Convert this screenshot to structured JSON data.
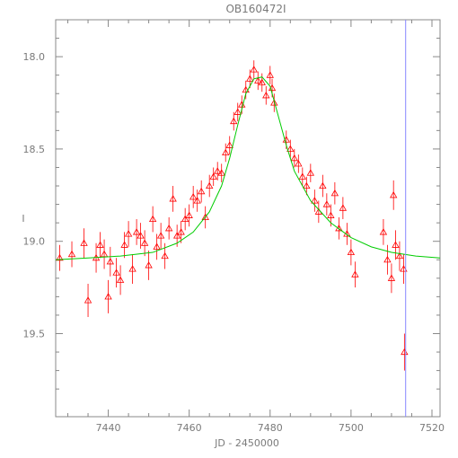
{
  "chart_data": {
    "type": "scatter",
    "title": "OB160472I",
    "xlabel": "JD - 2450000",
    "ylabel": "I",
    "xlim": [
      7427,
      7522
    ],
    "ylim": [
      19.95,
      17.8
    ],
    "y_inverted": true,
    "grid": false,
    "xticks": [
      7440,
      7460,
      7480,
      7500,
      7520
    ],
    "yticks": [
      18.0,
      18.5,
      19.0,
      19.5
    ],
    "xtick_labels": [
      "7440",
      "7460",
      "7480",
      "7500",
      "7520"
    ],
    "ytick_labels": [
      "18.0",
      "18.5",
      "19.0",
      "19.5"
    ],
    "vline_x": 7513.5,
    "series": [
      {
        "kind": "observations",
        "marker": "open-triangle",
        "color": "#ff0000",
        "points": [
          {
            "x": 7428,
            "y": 19.09,
            "err": 0.07
          },
          {
            "x": 7431,
            "y": 19.07,
            "err": 0.07
          },
          {
            "x": 7434,
            "y": 19.01,
            "err": 0.08
          },
          {
            "x": 7435,
            "y": 19.32,
            "err": 0.09
          },
          {
            "x": 7437,
            "y": 19.09,
            "err": 0.08
          },
          {
            "x": 7438,
            "y": 19.02,
            "err": 0.07
          },
          {
            "x": 7439,
            "y": 19.07,
            "err": 0.08
          },
          {
            "x": 7440,
            "y": 19.3,
            "err": 0.09
          },
          {
            "x": 7440.5,
            "y": 19.11,
            "err": 0.08
          },
          {
            "x": 7442,
            "y": 19.17,
            "err": 0.08
          },
          {
            "x": 7443,
            "y": 19.21,
            "err": 0.08
          },
          {
            "x": 7444,
            "y": 19.02,
            "err": 0.07
          },
          {
            "x": 7445,
            "y": 18.96,
            "err": 0.07
          },
          {
            "x": 7446,
            "y": 19.15,
            "err": 0.08
          },
          {
            "x": 7447,
            "y": 18.95,
            "err": 0.07
          },
          {
            "x": 7448,
            "y": 18.97,
            "err": 0.07
          },
          {
            "x": 7449,
            "y": 19.01,
            "err": 0.07
          },
          {
            "x": 7450,
            "y": 19.13,
            "err": 0.08
          },
          {
            "x": 7451,
            "y": 18.88,
            "err": 0.07
          },
          {
            "x": 7452,
            "y": 19.03,
            "err": 0.07
          },
          {
            "x": 7453,
            "y": 18.97,
            "err": 0.07
          },
          {
            "x": 7454,
            "y": 19.08,
            "err": 0.07
          },
          {
            "x": 7455,
            "y": 18.93,
            "err": 0.06
          },
          {
            "x": 7456,
            "y": 18.77,
            "err": 0.07
          },
          {
            "x": 7457,
            "y": 18.97,
            "err": 0.06
          },
          {
            "x": 7458,
            "y": 18.95,
            "err": 0.06
          },
          {
            "x": 7459,
            "y": 18.88,
            "err": 0.06
          },
          {
            "x": 7460,
            "y": 18.86,
            "err": 0.06
          },
          {
            "x": 7461,
            "y": 18.76,
            "err": 0.06
          },
          {
            "x": 7462,
            "y": 18.78,
            "err": 0.06
          },
          {
            "x": 7463,
            "y": 18.73,
            "err": 0.06
          },
          {
            "x": 7464,
            "y": 18.87,
            "err": 0.06
          },
          {
            "x": 7465,
            "y": 18.7,
            "err": 0.06
          },
          {
            "x": 7466,
            "y": 18.65,
            "err": 0.05
          },
          {
            "x": 7467,
            "y": 18.62,
            "err": 0.05
          },
          {
            "x": 7468,
            "y": 18.63,
            "err": 0.05
          },
          {
            "x": 7469,
            "y": 18.52,
            "err": 0.05
          },
          {
            "x": 7470,
            "y": 18.48,
            "err": 0.05
          },
          {
            "x": 7471,
            "y": 18.35,
            "err": 0.05
          },
          {
            "x": 7472,
            "y": 18.3,
            "err": 0.05
          },
          {
            "x": 7473,
            "y": 18.26,
            "err": 0.05
          },
          {
            "x": 7474,
            "y": 18.18,
            "err": 0.05
          },
          {
            "x": 7475,
            "y": 18.12,
            "err": 0.05
          },
          {
            "x": 7476,
            "y": 18.07,
            "err": 0.05
          },
          {
            "x": 7477,
            "y": 18.13,
            "err": 0.05
          },
          {
            "x": 7478,
            "y": 18.14,
            "err": 0.05
          },
          {
            "x": 7479,
            "y": 18.21,
            "err": 0.05
          },
          {
            "x": 7480,
            "y": 18.1,
            "err": 0.05
          },
          {
            "x": 7480.5,
            "y": 18.17,
            "err": 0.05
          },
          {
            "x": 7481,
            "y": 18.25,
            "err": 0.05
          },
          {
            "x": 7484,
            "y": 18.45,
            "err": 0.05
          },
          {
            "x": 7485,
            "y": 18.5,
            "err": 0.05
          },
          {
            "x": 7486,
            "y": 18.55,
            "err": 0.05
          },
          {
            "x": 7487,
            "y": 18.58,
            "err": 0.05
          },
          {
            "x": 7488,
            "y": 18.65,
            "err": 0.05
          },
          {
            "x": 7489,
            "y": 18.7,
            "err": 0.05
          },
          {
            "x": 7490,
            "y": 18.63,
            "err": 0.05
          },
          {
            "x": 7491,
            "y": 18.78,
            "err": 0.06
          },
          {
            "x": 7492,
            "y": 18.84,
            "err": 0.06
          },
          {
            "x": 7493,
            "y": 18.7,
            "err": 0.06
          },
          {
            "x": 7494,
            "y": 18.8,
            "err": 0.06
          },
          {
            "x": 7495,
            "y": 18.86,
            "err": 0.06
          },
          {
            "x": 7496,
            "y": 18.74,
            "err": 0.06
          },
          {
            "x": 7497,
            "y": 18.93,
            "err": 0.06
          },
          {
            "x": 7498,
            "y": 18.82,
            "err": 0.06
          },
          {
            "x": 7499,
            "y": 18.96,
            "err": 0.06
          },
          {
            "x": 7500,
            "y": 19.06,
            "err": 0.07
          },
          {
            "x": 7501,
            "y": 19.18,
            "err": 0.07
          },
          {
            "x": 7508,
            "y": 18.95,
            "err": 0.07
          },
          {
            "x": 7509,
            "y": 19.1,
            "err": 0.08
          },
          {
            "x": 7510,
            "y": 19.2,
            "err": 0.08
          },
          {
            "x": 7510.5,
            "y": 18.75,
            "err": 0.08
          },
          {
            "x": 7511,
            "y": 19.02,
            "err": 0.08
          },
          {
            "x": 7512,
            "y": 19.08,
            "err": 0.08
          },
          {
            "x": 7513,
            "y": 19.15,
            "err": 0.08
          },
          {
            "x": 7513.2,
            "y": 19.6,
            "err": 0.1
          }
        ]
      },
      {
        "kind": "model-fit",
        "color": "#00cc00",
        "x": [
          7427,
          7435,
          7443,
          7451,
          7457,
          7461,
          7465,
          7468,
          7470,
          7472,
          7474,
          7476,
          7478,
          7480,
          7482,
          7484,
          7486,
          7490,
          7495,
          7500,
          7505,
          7510,
          7516,
          7522
        ],
        "y": [
          19.1,
          19.09,
          19.08,
          19.06,
          19.01,
          18.95,
          18.84,
          18.7,
          18.55,
          18.37,
          18.2,
          18.12,
          18.11,
          18.16,
          18.32,
          18.48,
          18.62,
          18.78,
          18.9,
          18.98,
          19.03,
          19.06,
          19.08,
          19.09
        ]
      }
    ]
  }
}
